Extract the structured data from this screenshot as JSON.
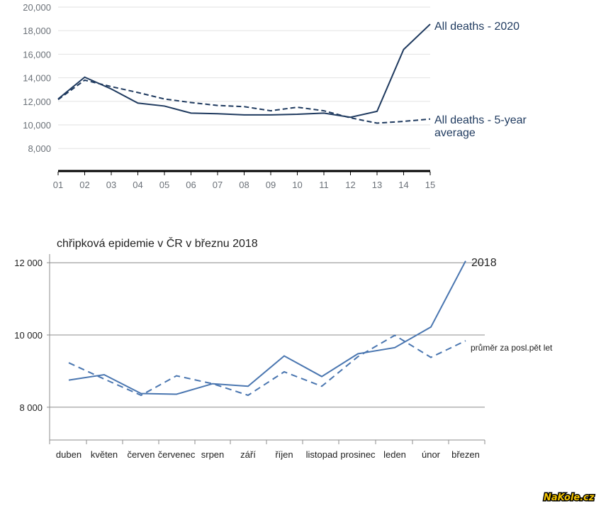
{
  "chart_data": [
    {
      "type": "line",
      "title": "",
      "xlabel": "",
      "ylabel": "",
      "categories": [
        "01",
        "02",
        "03",
        "04",
        "05",
        "06",
        "07",
        "08",
        "09",
        "10",
        "11",
        "12",
        "13",
        "14",
        "15"
      ],
      "ylim": [
        6000,
        20000
      ],
      "yticks": [
        "8,000",
        "10,000",
        "12,000",
        "14,000",
        "16,000",
        "18,000",
        "20,000"
      ],
      "ytick_values": [
        8000,
        10000,
        12000,
        14000,
        16000,
        18000,
        20000
      ],
      "series": [
        {
          "name": "All deaths - 2020",
          "style": "solid",
          "values": [
            12200,
            14050,
            13050,
            11850,
            11600,
            11000,
            10950,
            10850,
            10850,
            10900,
            11000,
            10650,
            11150,
            16400,
            18550
          ]
        },
        {
          "name": "All deaths - 5-year average",
          "style": "dashed",
          "values": [
            12150,
            13800,
            13250,
            12750,
            12200,
            11900,
            11650,
            11550,
            11200,
            11500,
            11200,
            10600,
            10150,
            10300,
            10500
          ]
        }
      ],
      "labels": {
        "series_a": "All deaths - 2020",
        "series_b_line1": "All deaths - 5-year",
        "series_b_line2": "average"
      },
      "colors": {
        "line": "#1f3a5f",
        "axis": "#000000",
        "grid": "#e2e2e2"
      }
    },
    {
      "type": "line",
      "title": "chřipková epidemie v ČR v březnu 2018",
      "xlabel": "",
      "ylabel": "",
      "categories": [
        "duben",
        "květen",
        "červen",
        "červenec",
        "srpen",
        "září",
        "říjen",
        "listopad",
        "prosinec",
        "leden",
        "únor",
        "březen"
      ],
      "ylim": [
        7100,
        12100
      ],
      "yticks": [
        "8 000",
        "10 000",
        "12 000"
      ],
      "ytick_values": [
        8000,
        10000,
        12000
      ],
      "series": [
        {
          "name": "2018",
          "style": "solid",
          "values": [
            8750,
            8900,
            8380,
            8360,
            8650,
            8580,
            9420,
            8850,
            9480,
            9650,
            10220,
            12050
          ]
        },
        {
          "name": "průměr za posl.pět let",
          "style": "dashed",
          "values": [
            9230,
            8780,
            8330,
            8870,
            8650,
            8330,
            8980,
            8580,
            9400,
            9990,
            9380,
            9840
          ]
        }
      ],
      "colors": {
        "line": "#4a76b0",
        "axis": "#9a9a9a"
      }
    }
  ],
  "watermark": "NaKole.cz"
}
